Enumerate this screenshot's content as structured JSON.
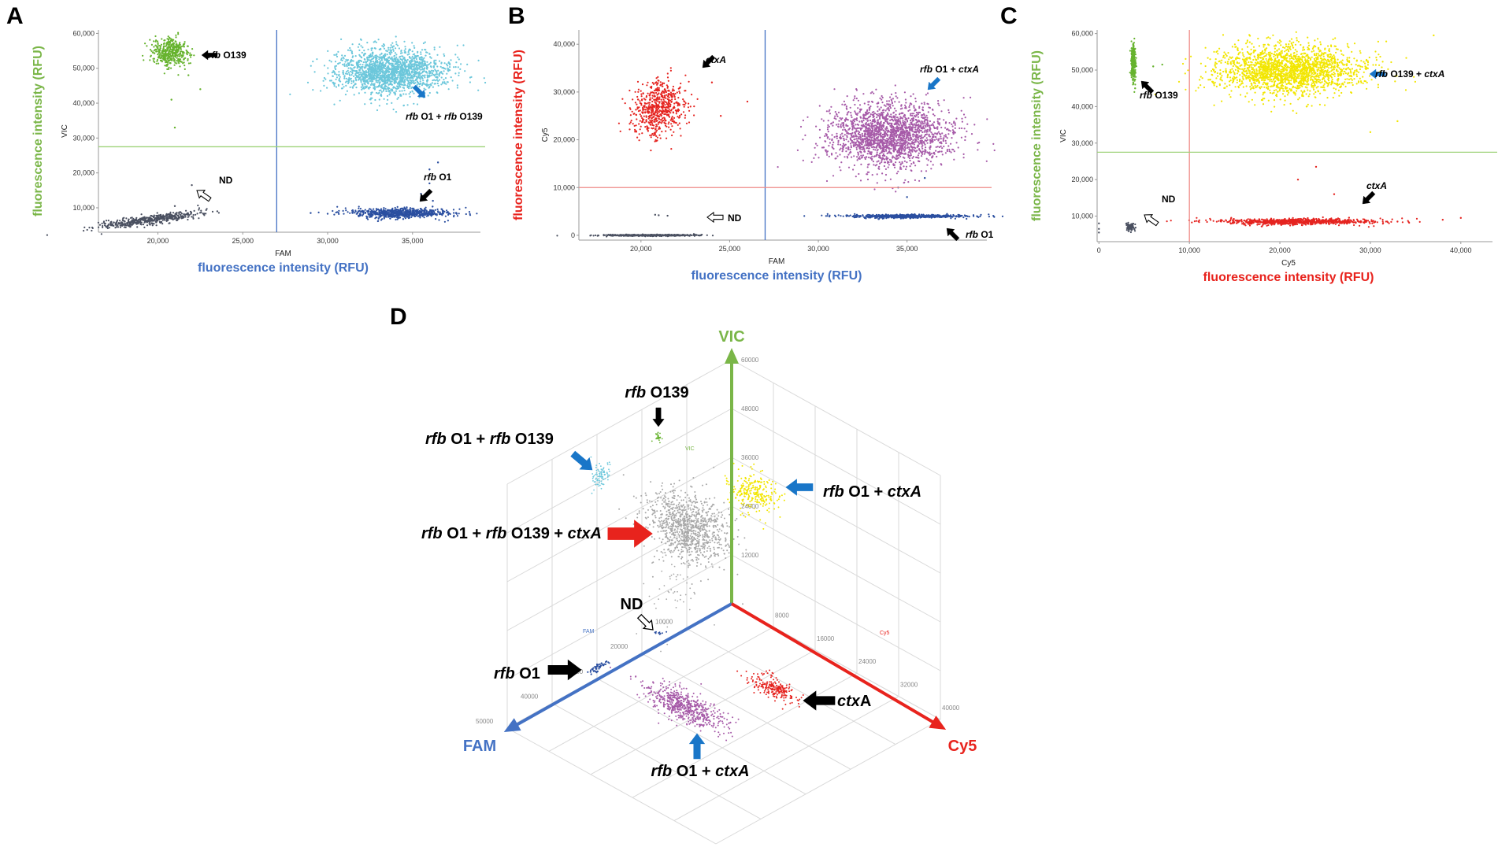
{
  "colors": {
    "fam": "#4472c4",
    "vic": "#7ab648",
    "cy5": "#e8231d",
    "cl_green": "#66b32e",
    "cl_cyan": "#6cc7db",
    "cl_navy": "#2b4fa0",
    "cl_gray": "#4a5060",
    "cl_red": "#e52420",
    "cl_purple": "#a65aa8",
    "cl_yellow": "#f2e600",
    "cl_silver": "#a8a8a8",
    "arrow_blue": "#1976c8",
    "arrow_red": "#e8231d",
    "arrow_black": "#000000"
  },
  "chart_data": [
    {
      "panel": "A",
      "type": "scatter",
      "xlabel": "FAM",
      "ylabel": "VIC",
      "x_title": "fluorescence intensity (RFU)",
      "y_title": "fluorescence intensity (RFU)",
      "xlim": [
        16500,
        39000
      ],
      "ylim": [
        3000,
        61000
      ],
      "xticks": [
        20000,
        25000,
        30000,
        35000
      ],
      "xticklabels": [
        "20,000",
        "25,000",
        "30,000",
        "35,000"
      ],
      "yticks": [
        10000,
        20000,
        30000,
        40000,
        50000,
        60000
      ],
      "yticklabels": [
        "10,000",
        "20,000",
        "30,000",
        "40,000",
        "50,000",
        "60,000"
      ],
      "thresholds": {
        "x": 27000,
        "y": 27500
      },
      "clusters": [
        {
          "name": "rfb O139",
          "x": 20700,
          "y": 54500
        },
        {
          "name": "rfb O1 + rfb O139",
          "x": 33700,
          "y": 49000
        },
        {
          "name": "rfb O1",
          "x": 34300,
          "y": 8500
        },
        {
          "name": "ND",
          "x": 19500,
          "y": 6500
        }
      ],
      "annotations": [
        {
          "prefix": "rfb",
          "rest": " O139"
        },
        {
          "prefix": "rfb",
          "rest": " O1 + ",
          "prefix2": "rfb",
          "rest2": " O139"
        },
        {
          "prefix": "rfb",
          "rest": " O1"
        },
        {
          "prefix": "",
          "rest": "ND"
        }
      ]
    },
    {
      "panel": "B",
      "type": "scatter",
      "xlabel": "FAM",
      "ylabel": "Cy5",
      "x_title": "fluorescence intensity (RFU)",
      "y_title": "fluorescence intensity (RFU)",
      "xlim": [
        16500,
        39500
      ],
      "ylim": [
        -1000,
        43000
      ],
      "xticks": [
        20000,
        25000,
        30000,
        35000
      ],
      "xticklabels": [
        "20,000",
        "25,000",
        "30,000",
        "35,000"
      ],
      "yticks": [
        0,
        10000,
        20000,
        30000,
        40000
      ],
      "yticklabels": [
        "0",
        "10,000",
        "20,000",
        "30,000",
        "40,000"
      ],
      "thresholds": {
        "x": 27000,
        "y": 10000
      },
      "clusters": [
        {
          "name": "ctxA",
          "x": 21000,
          "y": 26500
        },
        {
          "name": "rfb O1 + ctxA",
          "x": 34000,
          "y": 21000
        },
        {
          "name": "rfb O1",
          "x": 35000,
          "y": 4000
        },
        {
          "name": "ND",
          "x": 20500,
          "y": 0
        }
      ],
      "annotations": [
        {
          "prefix": "ctxA",
          "rest": ""
        },
        {
          "prefix": "rfb",
          "rest": " O1 + ",
          "prefix2": "ctxA",
          "rest2": ""
        },
        {
          "prefix": "rfb",
          "rest": " O1"
        },
        {
          "prefix": "",
          "rest": "ND"
        }
      ]
    },
    {
      "panel": "C",
      "type": "scatter",
      "xlabel": "Cy5",
      "ylabel": "VIC",
      "x_title": "fluorescence intensity (RFU)",
      "y_title": "fluorescence intensity (RFU)",
      "xlim": [
        -200,
        43500
      ],
      "ylim": [
        3000,
        61000
      ],
      "xticks": [
        0,
        10000,
        20000,
        30000,
        40000
      ],
      "xticklabels": [
        "0",
        "10,000",
        "20,000",
        "30,000",
        "40,000"
      ],
      "yticks": [
        10000,
        20000,
        30000,
        40000,
        50000,
        60000
      ],
      "yticklabels": [
        "10,000",
        "20,000",
        "30,000",
        "40,000",
        "50,000",
        "60,000"
      ],
      "thresholds": {
        "x": 10000,
        "y": 27500
      },
      "clusters": [
        {
          "name": "rfb O139",
          "x": 3800,
          "y": 52000
        },
        {
          "name": "rfb O139 + ctxA",
          "x": 21000,
          "y": 50000
        },
        {
          "name": "ctxA",
          "x": 22000,
          "y": 8500
        },
        {
          "name": "ND",
          "x": 3500,
          "y": 7000
        }
      ],
      "annotations": [
        {
          "prefix": "rfb",
          "rest": " O139"
        },
        {
          "prefix": "rfb",
          "rest": " O139 + ",
          "prefix2": "ctxA",
          "rest2": ""
        },
        {
          "prefix": "ctxA",
          "rest": ""
        },
        {
          "prefix": "",
          "rest": "ND"
        }
      ]
    },
    {
      "panel": "D",
      "type": "scatter3d",
      "axes": [
        "FAM",
        "VIC",
        "Cy5"
      ],
      "vic_ticks": [
        "60000",
        "48000",
        "36000",
        "24000",
        "12000"
      ],
      "fam_ticks": [
        "10000",
        "20000",
        "30000",
        "40000",
        "50000"
      ],
      "cy5_ticks": [
        "8000",
        "16000",
        "24000",
        "32000",
        "40000"
      ],
      "small_axis_tags": {
        "vic": "VIC",
        "fam": "FAM",
        "cy5": "Cy5"
      },
      "clusters": [
        {
          "name": "rfb O139"
        },
        {
          "name": "rfb O1 + rfb O139"
        },
        {
          "name": "rfb O1 + ctxA (VIC) "
        },
        {
          "name": "rfb O1 + rfb O139 + ctxA"
        },
        {
          "name": "ND"
        },
        {
          "name": "rfb O1"
        },
        {
          "name": "ctxA"
        },
        {
          "name": "rfb O1 + ctxA"
        }
      ],
      "labels": {
        "o139": {
          "italic": "rfb",
          "rest": " O139"
        },
        "o1_o139": {
          "italic": "rfb",
          "mid": " O1 + ",
          "italic2": "rfb",
          "rest": " O139"
        },
        "o1_ctxa_vic": {
          "italic": "rfb",
          "mid": " O1 + ",
          "italic2": "ctxA",
          "rest": ""
        },
        "triple": {
          "italic": "rfb",
          "mid": " O1 + ",
          "italic2": "rfb",
          "mid2": " O139 + ",
          "italic3": "ctxA"
        },
        "nd": {
          "italic": "",
          "rest": "ND"
        },
        "o1": {
          "italic": "rfb",
          "rest": " O1"
        },
        "ctxa": {
          "italic": "ctx",
          "rest": "A"
        },
        "o1_ctxa": {
          "italic": "rfb",
          "mid": " O1 + ",
          "italic2": "ctxA",
          "rest": ""
        }
      }
    }
  ],
  "panel_letters": [
    "A",
    "B",
    "C",
    "D"
  ]
}
